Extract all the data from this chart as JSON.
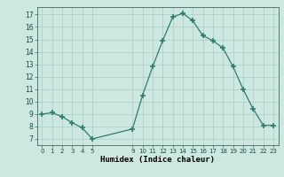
{
  "x": [
    0,
    1,
    2,
    3,
    4,
    5,
    9,
    10,
    11,
    12,
    13,
    14,
    15,
    16,
    17,
    18,
    19,
    20,
    21,
    22,
    23
  ],
  "y": [
    9,
    9.1,
    8.8,
    8.3,
    7.9,
    7.0,
    7.8,
    10.5,
    12.8,
    14.9,
    16.8,
    17.1,
    16.5,
    15.3,
    14.9,
    14.3,
    12.8,
    11.0,
    9.4,
    8.1,
    8.1
  ],
  "line_color": "#2e7d6e",
  "marker_color": "#2e7d6e",
  "bg_color": "#cce8e0",
  "grid_color": "#aaccc4",
  "xlabel": "Humidex (Indice chaleur)",
  "ylim": [
    6.5,
    17.6
  ],
  "xlim": [
    -0.5,
    23.5
  ],
  "yticks": [
    7,
    8,
    9,
    10,
    11,
    12,
    13,
    14,
    15,
    16,
    17
  ],
  "xticks": [
    0,
    1,
    2,
    3,
    4,
    5,
    9,
    10,
    11,
    12,
    13,
    14,
    15,
    16,
    17,
    18,
    19,
    20,
    21,
    22,
    23
  ],
  "xtick_labels": [
    "0",
    "1",
    "2",
    "3",
    "4",
    "5",
    "9",
    "10",
    "11",
    "12",
    "13",
    "14",
    "15",
    "16",
    "17",
    "18",
    "19",
    "20",
    "21",
    "22",
    "23"
  ]
}
